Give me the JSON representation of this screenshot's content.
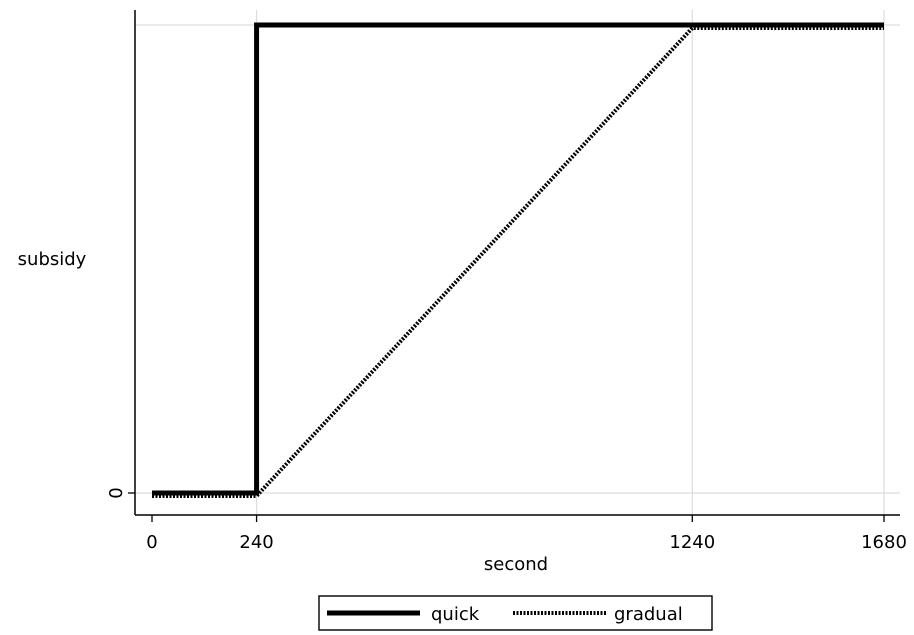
{
  "chart_data": {
    "type": "line",
    "title": "",
    "xlabel": "second",
    "ylabel": "subsidy",
    "xlim": [
      0,
      1680
    ],
    "ylim": [
      0,
      1
    ],
    "x_ticks": [
      {
        "value": 0,
        "label": "0"
      },
      {
        "value": 240,
        "label": "240"
      },
      {
        "value": 1240,
        "label": "1240"
      },
      {
        "value": 1680,
        "label": "1680"
      }
    ],
    "y_ticks": [
      {
        "value": 0,
        "label": "0"
      }
    ],
    "grid": true,
    "legend_position": "bottom",
    "series": [
      {
        "name": "quick",
        "style": "solid",
        "color": "#000000",
        "points": [
          [
            0,
            0
          ],
          [
            240,
            0
          ],
          [
            240,
            1
          ],
          [
            1680,
            1
          ]
        ]
      },
      {
        "name": "gradual",
        "style": "dotted",
        "color": "#000000",
        "points": [
          [
            0,
            0
          ],
          [
            240,
            0
          ],
          [
            1240,
            1
          ],
          [
            1680,
            1
          ]
        ]
      }
    ]
  },
  "colors": {
    "grid": "#dddddd",
    "axis": "#000000",
    "background": "#ffffff"
  }
}
